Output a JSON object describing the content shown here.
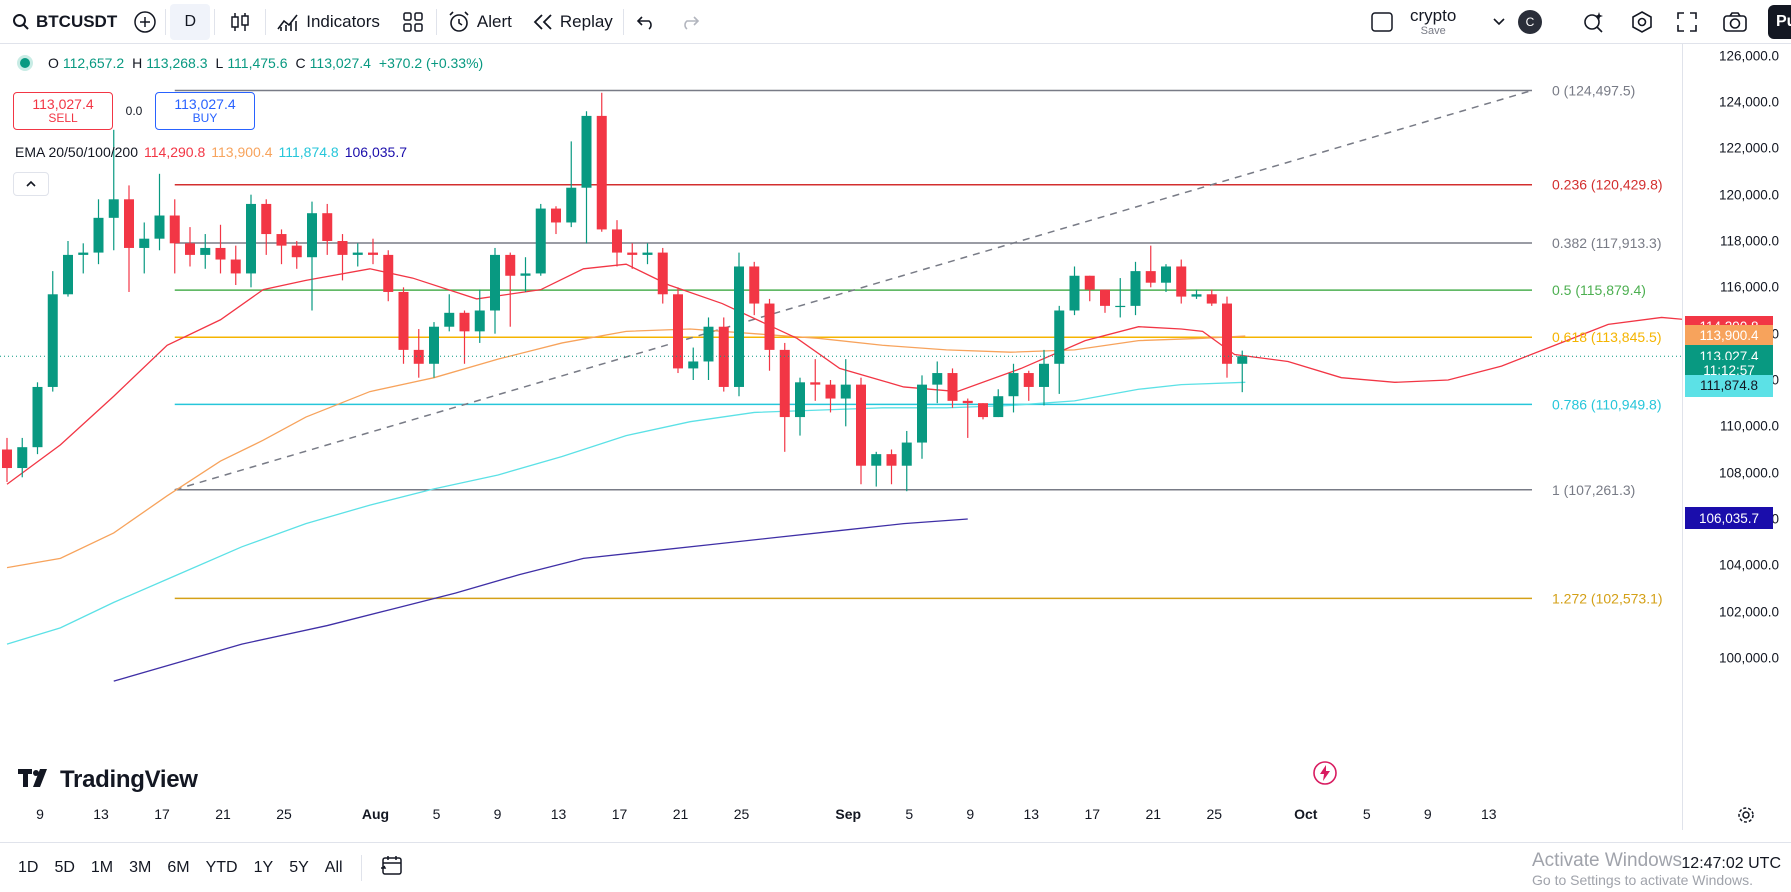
{
  "toolbar": {
    "symbol": "BTCUSDT",
    "interval": "D",
    "indicators_label": "Indicators",
    "alert_label": "Alert",
    "replay_label": "Replay",
    "account_title": "crypto",
    "account_sub": "Save",
    "avatar_letter": "C",
    "publish_label": "Pu"
  },
  "legend": {
    "open_label": "O",
    "open": "112,657.2",
    "high_label": "H",
    "high": "113,268.3",
    "low_label": "L",
    "low": "111,475.6",
    "close_label": "C",
    "close": "113,027.4",
    "change": "+370.2 (+0.33%)",
    "sell_price": "113,027.4",
    "sell_label": "SELL",
    "spread": "0.0",
    "buy_price": "113,027.4",
    "buy_label": "BUY",
    "ema_label": "EMA 20/50/100/200",
    "ema20": "114,290.8",
    "ema50": "113,900.4",
    "ema100": "111,874.8",
    "ema200": "106,035.7"
  },
  "colors": {
    "up": "#089981",
    "down": "#f23645",
    "ema20": "#f23645",
    "ema50": "#f7a35c",
    "ema100": "#5ce1e6",
    "ema200": "#3f2fa6",
    "fib_0": "#787b86",
    "fib_0236": "#d32f2f",
    "fib_0382": "#787b86",
    "fib_05": "#4caf50",
    "fib_0618": "#f5b400",
    "fib_0786": "#26c6da",
    "fib_1": "#787b86",
    "fib_1272": "#d4a017"
  },
  "fib_levels": [
    {
      "text": "0 (124,497.5)",
      "price": 124497.5,
      "color": "#787b86"
    },
    {
      "text": "0.236 (120,429.8)",
      "price": 120429.8,
      "color": "#d32f2f"
    },
    {
      "text": "0.382 (117,913.3)",
      "price": 117913.3,
      "color": "#787b86"
    },
    {
      "text": "0.5 (115,879.4)",
      "price": 115879.4,
      "color": "#4caf50"
    },
    {
      "text": "0.618 (113,845.5)",
      "price": 113845.5,
      "color": "#f5b400"
    },
    {
      "text": "0.786 (110,949.8)",
      "price": 110949.8,
      "color": "#26c6da"
    },
    {
      "text": "1 (107,261.3)",
      "price": 107261.3,
      "color": "#787b86"
    },
    {
      "text": "1.272 (102,573.1)",
      "price": 102573.1,
      "color": "#d4a017"
    }
  ],
  "chart_data": {
    "type": "candlestick",
    "ylim": [
      98800,
      126500
    ],
    "price_ticks": [
      "126,000.0",
      "124,000.0",
      "122,000.0",
      "120,000.0",
      "118,000.0",
      "116,000.0",
      "114,000.0",
      "112,000.0",
      "110,000.0",
      "108,000.0",
      "106,000.0",
      "104,000.0",
      "102,000.0",
      "100,000.0"
    ],
    "price_tick_values": [
      126000,
      124000,
      122000,
      120000,
      118000,
      116000,
      114000,
      112000,
      110000,
      108000,
      106000,
      104000,
      102000,
      100000
    ],
    "time_ticks": [
      {
        "label": "9",
        "day": 0,
        "bold": false
      },
      {
        "label": "13",
        "day": 4,
        "bold": false
      },
      {
        "label": "17",
        "day": 8,
        "bold": false
      },
      {
        "label": "21",
        "day": 12,
        "bold": false
      },
      {
        "label": "25",
        "day": 16,
        "bold": false
      },
      {
        "label": "Aug",
        "day": 22,
        "bold": true
      },
      {
        "label": "5",
        "day": 26,
        "bold": false
      },
      {
        "label": "9",
        "day": 30,
        "bold": false
      },
      {
        "label": "13",
        "day": 34,
        "bold": false
      },
      {
        "label": "17",
        "day": 38,
        "bold": false
      },
      {
        "label": "21",
        "day": 42,
        "bold": false
      },
      {
        "label": "25",
        "day": 46,
        "bold": false
      },
      {
        "label": "Sep",
        "day": 53,
        "bold": true
      },
      {
        "label": "5",
        "day": 57,
        "bold": false
      },
      {
        "label": "9",
        "day": 61,
        "bold": false
      },
      {
        "label": "13",
        "day": 65,
        "bold": false
      },
      {
        "label": "17",
        "day": 69,
        "bold": false
      },
      {
        "label": "21",
        "day": 73,
        "bold": false
      },
      {
        "label": "25",
        "day": 77,
        "bold": false
      },
      {
        "label": "Oct",
        "day": 83,
        "bold": true
      },
      {
        "label": "5",
        "day": 87,
        "bold": false
      },
      {
        "label": "9",
        "day": 91,
        "bold": false
      },
      {
        "label": "13",
        "day": 95,
        "bold": false
      }
    ],
    "candles": [
      [
        109000,
        108200,
        109500,
        107600
      ],
      [
        108200,
        109100,
        109500,
        107800
      ],
      [
        109100,
        111700,
        111900,
        108800
      ],
      [
        111700,
        115700,
        116700,
        111500
      ],
      [
        115700,
        117400,
        118000,
        115600
      ],
      [
        117400,
        117500,
        117900,
        116600
      ],
      [
        117500,
        119000,
        119800,
        117000
      ],
      [
        119000,
        119800,
        122800,
        117600
      ],
      [
        119800,
        117700,
        120400,
        115800
      ],
      [
        117700,
        118100,
        118800,
        116600
      ],
      [
        118100,
        119100,
        120900,
        117600
      ],
      [
        119100,
        117900,
        119800,
        116600
      ],
      [
        117900,
        117400,
        118600,
        116900
      ],
      [
        117400,
        117700,
        118300,
        116800
      ],
      [
        117700,
        117200,
        118700,
        116600
      ],
      [
        117200,
        116600,
        117800,
        116100
      ],
      [
        116600,
        119600,
        120000,
        116000
      ],
      [
        119600,
        118300,
        119800,
        117400
      ],
      [
        118300,
        117800,
        118500,
        117000
      ],
      [
        117800,
        117300,
        118000,
        116800
      ],
      [
        117300,
        119200,
        119700,
        115000
      ],
      [
        119200,
        118000,
        119600,
        117400
      ],
      [
        118000,
        117400,
        118300,
        116300
      ],
      [
        117400,
        117500,
        117900,
        116900
      ],
      [
        117500,
        117400,
        118100,
        117000
      ],
      [
        117400,
        115800,
        117600,
        115400
      ],
      [
        115800,
        113300,
        116000,
        112700
      ],
      [
        113300,
        112700,
        114200,
        112100
      ],
      [
        112700,
        114300,
        114500,
        112100
      ],
      [
        114300,
        114900,
        115700,
        114100
      ],
      [
        114900,
        114100,
        115000,
        112700
      ],
      [
        114100,
        115000,
        115900,
        113600
      ],
      [
        115000,
        117400,
        117700,
        114000
      ],
      [
        117400,
        116500,
        117500,
        114300
      ],
      [
        116500,
        116600,
        117300,
        115800
      ],
      [
        116600,
        119400,
        119600,
        116500
      ],
      [
        119400,
        118800,
        119500,
        118300
      ],
      [
        118800,
        120300,
        122300,
        118600
      ],
      [
        120300,
        123400,
        123600,
        117900
      ],
      [
        123400,
        118500,
        124400,
        118400
      ],
      [
        118500,
        117500,
        118900,
        116900
      ],
      [
        117500,
        117400,
        117900,
        116800
      ],
      [
        117400,
        117500,
        117900,
        117000
      ],
      [
        117500,
        115700,
        117700,
        115300
      ],
      [
        115700,
        112500,
        116000,
        112300
      ],
      [
        112500,
        112800,
        113400,
        112000
      ],
      [
        112800,
        114300,
        114700,
        112000
      ],
      [
        114300,
        111700,
        114700,
        111500
      ],
      [
        111700,
        116900,
        117500,
        111300
      ],
      [
        116900,
        115300,
        117100,
        114800
      ],
      [
        115300,
        113300,
        115500,
        112400
      ],
      [
        113300,
        110400,
        113600,
        108900
      ],
      [
        110400,
        111900,
        112100,
        109600
      ],
      [
        111900,
        111800,
        112900,
        111100
      ],
      [
        111800,
        111200,
        112000,
        110600
      ],
      [
        111200,
        111800,
        112900,
        110000
      ],
      [
        111800,
        108300,
        112100,
        107500
      ],
      [
        108300,
        108800,
        108900,
        107400
      ],
      [
        108800,
        108300,
        109000,
        107500
      ],
      [
        108300,
        109300,
        109800,
        107200
      ],
      [
        109300,
        111800,
        112200,
        108600
      ],
      [
        111800,
        112300,
        112800,
        111000
      ],
      [
        112300,
        111100,
        112500,
        110800
      ],
      [
        111100,
        111000,
        111200,
        109500
      ],
      [
        111000,
        110400,
        111000,
        110300
      ],
      [
        110400,
        111300,
        111600,
        110400
      ],
      [
        111300,
        112300,
        112700,
        110600
      ],
      [
        112300,
        111700,
        112400,
        111100
      ],
      [
        111700,
        112700,
        113300,
        110900
      ],
      [
        112700,
        115000,
        115200,
        111400
      ],
      [
        115000,
        116500,
        116900,
        114800
      ],
      [
        116500,
        115900,
        116500,
        115400
      ],
      [
        115900,
        115200,
        115900,
        114900
      ],
      [
        115200,
        115200,
        116400,
        114700
      ],
      [
        115200,
        116700,
        117100,
        114800
      ],
      [
        116700,
        116200,
        117800,
        116000
      ],
      [
        116200,
        116900,
        117000,
        115800
      ],
      [
        116900,
        115600,
        117200,
        115300
      ],
      [
        115600,
        115700,
        115900,
        115500
      ],
      [
        115700,
        115300,
        115900,
        115200
      ],
      [
        115300,
        112700,
        115600,
        112100
      ],
      [
        112700,
        113027,
        113268,
        111475
      ]
    ],
    "ema20": [
      [
        0,
        107500
      ],
      [
        5,
        109200
      ],
      [
        10,
        111300
      ],
      [
        15,
        113500
      ],
      [
        20,
        114600
      ],
      [
        24,
        115900
      ],
      [
        28,
        116300
      ],
      [
        34,
        116800
      ],
      [
        38,
        116400
      ],
      [
        44,
        115500
      ],
      [
        50,
        115900
      ],
      [
        54,
        116800
      ],
      [
        58,
        117000
      ],
      [
        62,
        116100
      ],
      [
        67,
        115300
      ],
      [
        74,
        113800
      ],
      [
        78,
        112500
      ],
      [
        84,
        111700
      ],
      [
        89,
        111500
      ],
      [
        95,
        112500
      ],
      [
        101,
        113700
      ],
      [
        106,
        114300
      ],
      [
        110,
        114200
      ],
      [
        112,
        114100
      ],
      [
        115,
        113100
      ],
      [
        120,
        112800
      ],
      [
        125,
        112100
      ],
      [
        130,
        111900
      ],
      [
        135,
        112000
      ],
      [
        140,
        112600
      ],
      [
        145,
        113500
      ],
      [
        150,
        114400
      ],
      [
        155,
        114700
      ],
      [
        160,
        114500
      ],
      [
        165,
        114300
      ]
    ],
    "ema50": [
      [
        0,
        103900
      ],
      [
        5,
        104300
      ],
      [
        10,
        105400
      ],
      [
        15,
        107000
      ],
      [
        20,
        108500
      ],
      [
        24,
        109400
      ],
      [
        28,
        110400
      ],
      [
        34,
        111500
      ],
      [
        40,
        112100
      ],
      [
        46,
        112900
      ],
      [
        52,
        113600
      ],
      [
        58,
        114100
      ],
      [
        64,
        114200
      ],
      [
        70,
        114000
      ],
      [
        76,
        113800
      ],
      [
        82,
        113500
      ],
      [
        88,
        113300
      ],
      [
        94,
        113200
      ],
      [
        100,
        113300
      ],
      [
        106,
        113700
      ],
      [
        112,
        113800
      ],
      [
        116,
        113900
      ]
    ],
    "ema100": [
      [
        0,
        100600
      ],
      [
        5,
        101300
      ],
      [
        10,
        102400
      ],
      [
        16,
        103600
      ],
      [
        22,
        104800
      ],
      [
        28,
        105800
      ],
      [
        34,
        106600
      ],
      [
        40,
        107300
      ],
      [
        46,
        107900
      ],
      [
        52,
        108700
      ],
      [
        58,
        109600
      ],
      [
        64,
        110200
      ],
      [
        70,
        110600
      ],
      [
        76,
        110700
      ],
      [
        82,
        110800
      ],
      [
        88,
        110800
      ],
      [
        94,
        110900
      ],
      [
        100,
        111100
      ],
      [
        106,
        111600
      ],
      [
        110,
        111800
      ],
      [
        116,
        111900
      ]
    ],
    "ema200": [
      [
        10,
        99000
      ],
      [
        16,
        99800
      ],
      [
        22,
        100600
      ],
      [
        30,
        101400
      ],
      [
        36,
        102100
      ],
      [
        42,
        102800
      ],
      [
        48,
        103600
      ],
      [
        54,
        104300
      ],
      [
        60,
        104600
      ],
      [
        66,
        104900
      ],
      [
        72,
        105200
      ],
      [
        78,
        105500
      ],
      [
        84,
        105800
      ],
      [
        90,
        106000
      ]
    ]
  },
  "price_badges": [
    {
      "text": "114,290.8",
      "price": 114290.8,
      "bg": "#f23645",
      "fg": "#ffffff"
    },
    {
      "text": "113,900.4",
      "price": 113900.4,
      "bg": "#f7a35c",
      "fg": "#ffffff"
    },
    {
      "text": "113,027.4",
      "price": 113027.4,
      "bg": "#089981",
      "fg": "#ffffff"
    },
    {
      "text": "11:12:57",
      "price": 112400,
      "bg": "#089981",
      "fg": "#ffffff"
    },
    {
      "text": "111,874.8",
      "price": 111750,
      "bg": "#5ce1e6",
      "fg": "#131722"
    },
    {
      "text": "106,035.7",
      "price": 106035.7,
      "bg": "#1a0dab",
      "fg": "#ffffff"
    }
  ],
  "bottom": {
    "ranges": [
      "1D",
      "5D",
      "1M",
      "3M",
      "6M",
      "YTD",
      "1Y",
      "5Y",
      "All"
    ],
    "clock": "12:47:02 UTC",
    "watermark_title": "Activate Windows",
    "watermark_sub": "Go to Settings to activate Windows."
  },
  "brand": {
    "name": "TradingView"
  }
}
